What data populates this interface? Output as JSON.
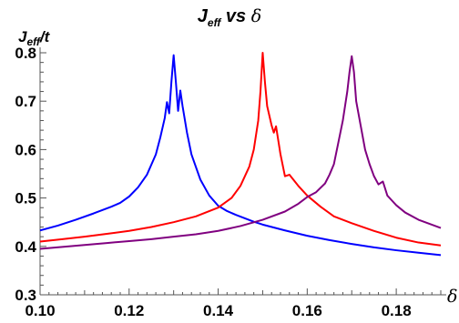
{
  "chart_data": {
    "type": "line",
    "title": {
      "main": "J",
      "sub": "eff",
      "mid": " vs ",
      "greek": "δ"
    },
    "ylabel": {
      "main": "J",
      "sub": "eff",
      "tail": "/t"
    },
    "xlabel": "δ",
    "xlim": [
      0.1,
      0.19
    ],
    "ylim": [
      0.3,
      0.8
    ],
    "xticks": [
      "0.10",
      "0.12",
      "0.14",
      "0.16",
      "0.18"
    ],
    "xtick_values": [
      0.1,
      0.12,
      0.14,
      0.16,
      0.18
    ],
    "yticks": [
      "0.3",
      "0.4",
      "0.5",
      "0.6",
      "0.7",
      "0.8"
    ],
    "ytick_values": [
      0.3,
      0.4,
      0.5,
      0.6,
      0.7,
      0.8
    ],
    "grid": false,
    "series": [
      {
        "color": "#0000ff",
        "points": [
          [
            0.1,
            0.433
          ],
          [
            0.104,
            0.443
          ],
          [
            0.108,
            0.455
          ],
          [
            0.112,
            0.468
          ],
          [
            0.116,
            0.482
          ],
          [
            0.118,
            0.49
          ],
          [
            0.12,
            0.503
          ],
          [
            0.122,
            0.522
          ],
          [
            0.124,
            0.548
          ],
          [
            0.126,
            0.59
          ],
          [
            0.127,
            0.625
          ],
          [
            0.128,
            0.665
          ],
          [
            0.1285,
            0.698
          ],
          [
            0.129,
            0.675
          ],
          [
            0.1295,
            0.74
          ],
          [
            0.13,
            0.795
          ],
          [
            0.1305,
            0.74
          ],
          [
            0.131,
            0.68
          ],
          [
            0.1315,
            0.722
          ],
          [
            0.132,
            0.69
          ],
          [
            0.133,
            0.635
          ],
          [
            0.134,
            0.59
          ],
          [
            0.136,
            0.538
          ],
          [
            0.138,
            0.505
          ],
          [
            0.14,
            0.484
          ],
          [
            0.142,
            0.473
          ],
          [
            0.144,
            0.465
          ],
          [
            0.146,
            0.458
          ],
          [
            0.148,
            0.451
          ],
          [
            0.15,
            0.445
          ],
          [
            0.155,
            0.433
          ],
          [
            0.16,
            0.422
          ],
          [
            0.165,
            0.413
          ],
          [
            0.17,
            0.405
          ],
          [
            0.175,
            0.398
          ],
          [
            0.18,
            0.392
          ],
          [
            0.185,
            0.387
          ],
          [
            0.19,
            0.382
          ]
        ]
      },
      {
        "color": "#ff0000",
        "points": [
          [
            0.1,
            0.41
          ],
          [
            0.105,
            0.415
          ],
          [
            0.11,
            0.42
          ],
          [
            0.115,
            0.426
          ],
          [
            0.12,
            0.432
          ],
          [
            0.125,
            0.44
          ],
          [
            0.13,
            0.45
          ],
          [
            0.135,
            0.462
          ],
          [
            0.14,
            0.48
          ],
          [
            0.143,
            0.5
          ],
          [
            0.145,
            0.525
          ],
          [
            0.147,
            0.565
          ],
          [
            0.148,
            0.6
          ],
          [
            0.149,
            0.66
          ],
          [
            0.1495,
            0.72
          ],
          [
            0.15,
            0.8
          ],
          [
            0.1505,
            0.74
          ],
          [
            0.151,
            0.69
          ],
          [
            0.152,
            0.65
          ],
          [
            0.1525,
            0.635
          ],
          [
            0.153,
            0.648
          ],
          [
            0.154,
            0.59
          ],
          [
            0.155,
            0.545
          ],
          [
            0.156,
            0.548
          ],
          [
            0.158,
            0.525
          ],
          [
            0.16,
            0.505
          ],
          [
            0.163,
            0.482
          ],
          [
            0.166,
            0.462
          ],
          [
            0.168,
            0.455
          ],
          [
            0.17,
            0.448
          ],
          [
            0.175,
            0.432
          ],
          [
            0.18,
            0.418
          ],
          [
            0.185,
            0.408
          ],
          [
            0.19,
            0.402
          ]
        ]
      },
      {
        "color": "#800080",
        "points": [
          [
            0.1,
            0.395
          ],
          [
            0.105,
            0.399
          ],
          [
            0.11,
            0.403
          ],
          [
            0.115,
            0.407
          ],
          [
            0.12,
            0.411
          ],
          [
            0.125,
            0.415
          ],
          [
            0.13,
            0.42
          ],
          [
            0.135,
            0.425
          ],
          [
            0.14,
            0.432
          ],
          [
            0.145,
            0.442
          ],
          [
            0.15,
            0.455
          ],
          [
            0.155,
            0.472
          ],
          [
            0.158,
            0.488
          ],
          [
            0.16,
            0.502
          ],
          [
            0.162,
            0.512
          ],
          [
            0.164,
            0.53
          ],
          [
            0.165,
            0.548
          ],
          [
            0.166,
            0.57
          ],
          [
            0.167,
            0.615
          ],
          [
            0.168,
            0.66
          ],
          [
            0.169,
            0.72
          ],
          [
            0.1695,
            0.76
          ],
          [
            0.17,
            0.793
          ],
          [
            0.1705,
            0.76
          ],
          [
            0.171,
            0.7
          ],
          [
            0.172,
            0.65
          ],
          [
            0.173,
            0.6
          ],
          [
            0.174,
            0.57
          ],
          [
            0.175,
            0.545
          ],
          [
            0.176,
            0.528
          ],
          [
            0.177,
            0.534
          ],
          [
            0.178,
            0.505
          ],
          [
            0.179,
            0.495
          ],
          [
            0.18,
            0.485
          ],
          [
            0.182,
            0.47
          ],
          [
            0.185,
            0.455
          ],
          [
            0.19,
            0.438
          ]
        ]
      }
    ]
  }
}
